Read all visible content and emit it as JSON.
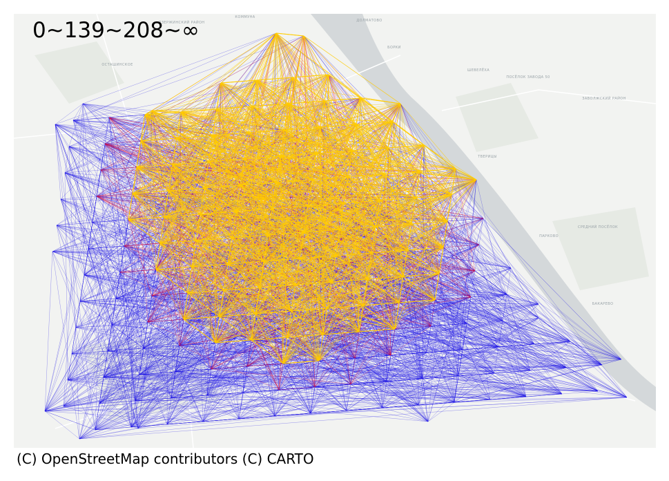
{
  "map": {
    "legend_title": "0~139~208~∞",
    "attribution": "(C) OpenStreetMap contributors (C) CARTO",
    "edge_colors": {
      "far": "#1e14e6",
      "mid": "#e0143c",
      "near": "#ffcc00"
    },
    "basemap_colors": {
      "land": "#f2f3f1",
      "water": "#d4d8da",
      "park": "#e4e8e2"
    },
    "place_labels": [
      "КОММУНА",
      "ДЗЕРЖИНСКИЙ РАЙОН",
      "ДОЛМАТОВО",
      "БОРКИ",
      "ОСТАШИНСКОЕ",
      "ШЕВЕЛЁХА",
      "ПОСЁЛОК ЗАВОДА 50",
      "ЗАВОЛЖСКИЙ РАЙОН",
      "ТВЕРИЦЫ",
      "СРЕДНИЙ ПОСЁЛОК",
      "ПАРКОВО",
      "БАКАРЕВО"
    ]
  }
}
